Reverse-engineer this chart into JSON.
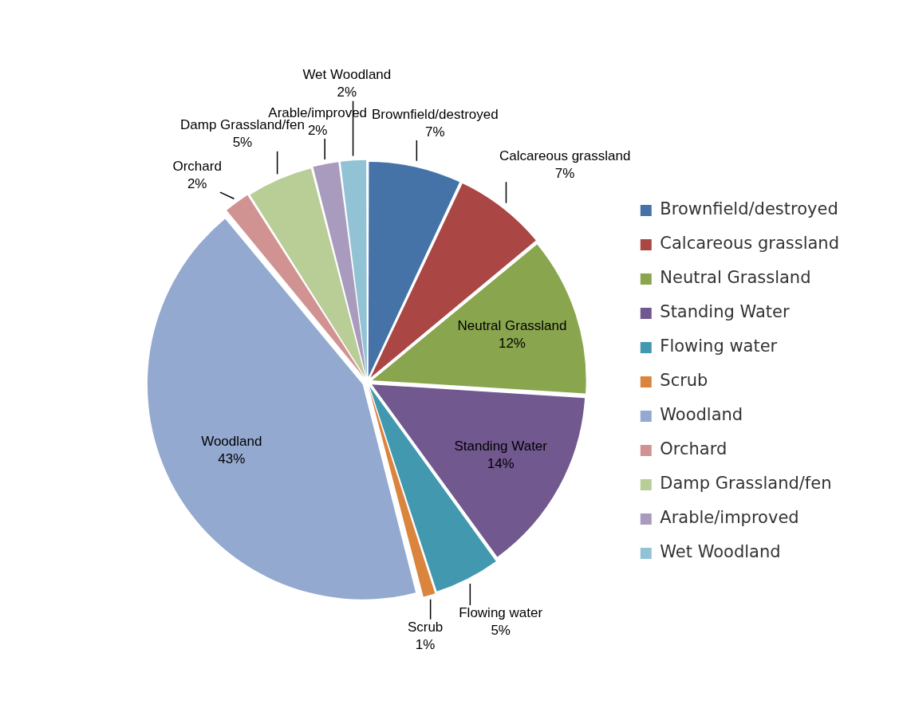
{
  "chart_data": {
    "type": "pie",
    "categories": [
      "Brownfield/destroyed",
      "Calcareous grassland",
      "Neutral Grassland",
      "Standing Water",
      "Flowing water",
      "Scrub",
      "Woodland",
      "Orchard",
      "Damp Grassland/fen",
      "Arable/improved",
      "Wet Woodland"
    ],
    "values": [
      7,
      7,
      12,
      14,
      5,
      1,
      43,
      2,
      5,
      2,
      2
    ],
    "colors": [
      "#4572a7",
      "#aa4643",
      "#89a54e",
      "#71588f",
      "#4198af",
      "#db843d",
      "#93a9cf",
      "#d19392",
      "#b9cd96",
      "#a99bbd",
      "#92c3d5"
    ],
    "value_labels": [
      "7%",
      "7%",
      "12%",
      "14%",
      "5%",
      "1%",
      "43%",
      "2%",
      "5%",
      "2%",
      "2%"
    ],
    "legend": "right"
  }
}
